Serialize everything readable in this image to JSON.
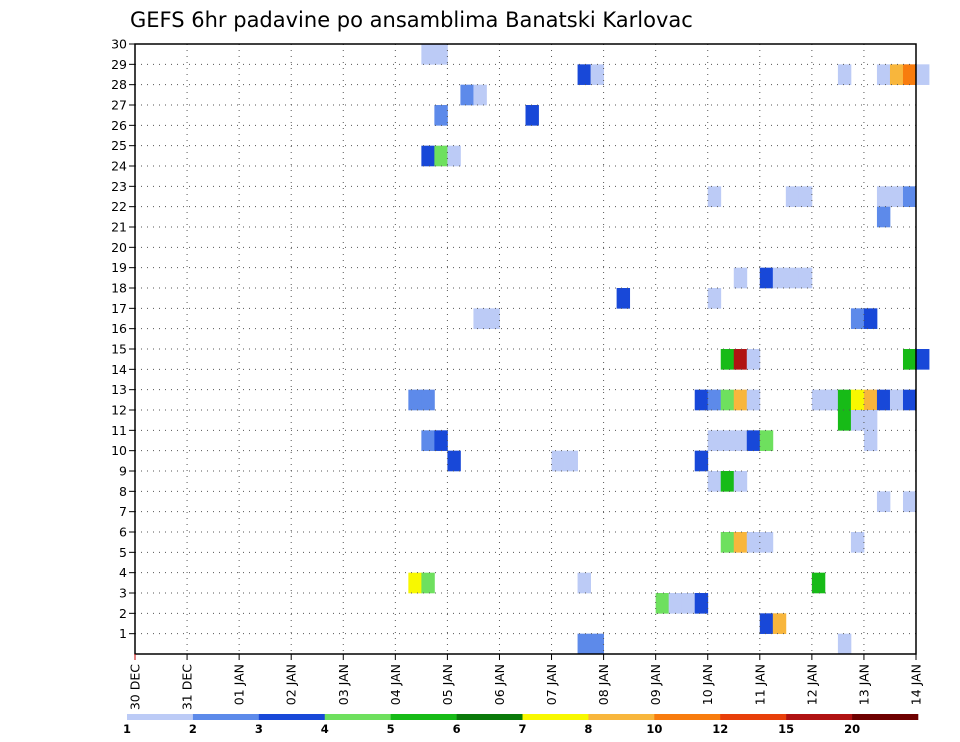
{
  "chart_data": {
    "type": "heatmap",
    "title": "GEFS 6hr padavine po ansamblima Banatski Karlovac",
    "xlabel": "",
    "ylabel": "",
    "x_start": "30 DEC",
    "x_step_hours": 6,
    "x_tick_labels": [
      "30 DEC",
      "31 DEC",
      "01 JAN",
      "02 JAN",
      "03 JAN",
      "04 JAN",
      "05 JAN",
      "06 JAN",
      "07 JAN",
      "08 JAN",
      "09 JAN",
      "10 JAN",
      "11 JAN",
      "12 JAN",
      "13 JAN",
      "14 JAN"
    ],
    "y_tick_labels": [
      "1",
      "2",
      "3",
      "4",
      "5",
      "6",
      "7",
      "8",
      "9",
      "10",
      "11",
      "12",
      "13",
      "14",
      "15",
      "16",
      "17",
      "18",
      "19",
      "20",
      "21",
      "22",
      "23",
      "24",
      "25",
      "26",
      "27",
      "28",
      "29",
      "30"
    ],
    "ylim": [
      0,
      30
    ],
    "grid": true,
    "colorbar": {
      "colors": [
        "#bccbf6",
        "#5d8aea",
        "#1848d8",
        "#6ee05e",
        "#17bb17",
        "#0b7a0b",
        "#f8f800",
        "#f8b63c",
        "#f87c0e",
        "#e83f0a",
        "#b01212",
        "#6e0000"
      ],
      "labels": [
        "1",
        "2",
        "3",
        "4",
        "5",
        "6",
        "7",
        "8",
        "10",
        "12",
        "15",
        "20"
      ]
    },
    "cells": [
      {
        "m": 30,
        "t": 22,
        "c": 0
      },
      {
        "m": 30,
        "t": 23,
        "c": 0
      },
      {
        "m": 29,
        "t": 34,
        "c": 2
      },
      {
        "m": 29,
        "t": 35,
        "c": 0
      },
      {
        "m": 29,
        "t": 54,
        "c": 0
      },
      {
        "m": 29,
        "t": 57,
        "c": 0
      },
      {
        "m": 29,
        "t": 58,
        "c": 7
      },
      {
        "m": 29,
        "t": 59,
        "c": 8
      },
      {
        "m": 29,
        "t": 60,
        "c": 0
      },
      {
        "m": 28,
        "t": 25,
        "c": 1
      },
      {
        "m": 28,
        "t": 26,
        "c": 0
      },
      {
        "m": 27,
        "t": 23,
        "c": 1
      },
      {
        "m": 27,
        "t": 30,
        "c": 2
      },
      {
        "m": 25,
        "t": 22,
        "c": 2
      },
      {
        "m": 25,
        "t": 23,
        "c": 3
      },
      {
        "m": 25,
        "t": 24,
        "c": 0
      },
      {
        "m": 23,
        "t": 44,
        "c": 0
      },
      {
        "m": 23,
        "t": 50,
        "c": 0
      },
      {
        "m": 23,
        "t": 51,
        "c": 0
      },
      {
        "m": 23,
        "t": 57,
        "c": 0
      },
      {
        "m": 23,
        "t": 58,
        "c": 0
      },
      {
        "m": 23,
        "t": 59,
        "c": 1
      },
      {
        "m": 22,
        "t": 57,
        "c": 1
      },
      {
        "m": 19,
        "t": 46,
        "c": 0
      },
      {
        "m": 19,
        "t": 48,
        "c": 2
      },
      {
        "m": 19,
        "t": 49,
        "c": 0
      },
      {
        "m": 19,
        "t": 50,
        "c": 0
      },
      {
        "m": 19,
        "t": 51,
        "c": 0
      },
      {
        "m": 18,
        "t": 37,
        "c": 2
      },
      {
        "m": 18,
        "t": 44,
        "c": 0
      },
      {
        "m": 17,
        "t": 26,
        "c": 0
      },
      {
        "m": 17,
        "t": 27,
        "c": 0
      },
      {
        "m": 17,
        "t": 55,
        "c": 1
      },
      {
        "m": 17,
        "t": 56,
        "c": 2
      },
      {
        "m": 15,
        "t": 45,
        "c": 4
      },
      {
        "m": 15,
        "t": 46,
        "c": 10
      },
      {
        "m": 15,
        "t": 47,
        "c": 0
      },
      {
        "m": 15,
        "t": 59,
        "c": 4
      },
      {
        "m": 15,
        "t": 60,
        "c": 2
      },
      {
        "m": 13,
        "t": 21,
        "c": 1
      },
      {
        "m": 13,
        "t": 22,
        "c": 1
      },
      {
        "m": 13,
        "t": 43,
        "c": 2
      },
      {
        "m": 13,
        "t": 44,
        "c": 1
      },
      {
        "m": 13,
        "t": 45,
        "c": 3
      },
      {
        "m": 13,
        "t": 46,
        "c": 7
      },
      {
        "m": 13,
        "t": 47,
        "c": 0
      },
      {
        "m": 13,
        "t": 52,
        "c": 0
      },
      {
        "m": 13,
        "t": 53,
        "c": 0
      },
      {
        "m": 13,
        "t": 54,
        "c": 4
      },
      {
        "m": 13,
        "t": 55,
        "c": 6
      },
      {
        "m": 13,
        "t": 56,
        "c": 7
      },
      {
        "m": 13,
        "t": 57,
        "c": 2
      },
      {
        "m": 13,
        "t": 58,
        "c": 0
      },
      {
        "m": 13,
        "t": 59,
        "c": 2
      },
      {
        "m": 12,
        "t": 54,
        "c": 4
      },
      {
        "m": 12,
        "t": 55,
        "c": 0
      },
      {
        "m": 12,
        "t": 56,
        "c": 0
      },
      {
        "m": 11,
        "t": 22,
        "c": 1
      },
      {
        "m": 11,
        "t": 23,
        "c": 2
      },
      {
        "m": 11,
        "t": 44,
        "c": 0
      },
      {
        "m": 11,
        "t": 45,
        "c": 0
      },
      {
        "m": 11,
        "t": 46,
        "c": 0
      },
      {
        "m": 11,
        "t": 47,
        "c": 2
      },
      {
        "m": 11,
        "t": 48,
        "c": 3
      },
      {
        "m": 11,
        "t": 56,
        "c": 0
      },
      {
        "m": 10,
        "t": 24,
        "c": 2
      },
      {
        "m": 10,
        "t": 32,
        "c": 0
      },
      {
        "m": 10,
        "t": 33,
        "c": 0
      },
      {
        "m": 10,
        "t": 43,
        "c": 2
      },
      {
        "m": 9,
        "t": 44,
        "c": 0
      },
      {
        "m": 9,
        "t": 45,
        "c": 4
      },
      {
        "m": 9,
        "t": 46,
        "c": 0
      },
      {
        "m": 8,
        "t": 57,
        "c": 0
      },
      {
        "m": 8,
        "t": 59,
        "c": 0
      },
      {
        "m": 6,
        "t": 45,
        "c": 3
      },
      {
        "m": 6,
        "t": 46,
        "c": 7
      },
      {
        "m": 6,
        "t": 47,
        "c": 0
      },
      {
        "m": 6,
        "t": 48,
        "c": 0
      },
      {
        "m": 6,
        "t": 55,
        "c": 0
      },
      {
        "m": 4,
        "t": 21,
        "c": 6
      },
      {
        "m": 4,
        "t": 22,
        "c": 3
      },
      {
        "m": 4,
        "t": 34,
        "c": 0
      },
      {
        "m": 4,
        "t": 52,
        "c": 4
      },
      {
        "m": 3,
        "t": 40,
        "c": 3
      },
      {
        "m": 3,
        "t": 41,
        "c": 0
      },
      {
        "m": 3,
        "t": 42,
        "c": 0
      },
      {
        "m": 3,
        "t": 43,
        "c": 2
      },
      {
        "m": 2,
        "t": 48,
        "c": 2
      },
      {
        "m": 2,
        "t": 49,
        "c": 7
      },
      {
        "m": 1,
        "t": 34,
        "c": 1
      },
      {
        "m": 1,
        "t": 35,
        "c": 1
      },
      {
        "m": 1,
        "t": 54,
        "c": 0
      }
    ]
  }
}
